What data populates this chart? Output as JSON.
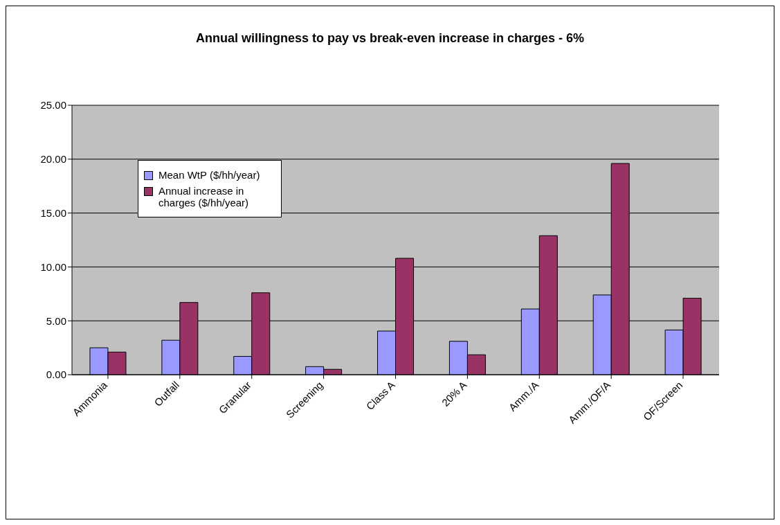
{
  "chart_data": {
    "type": "bar",
    "title": "Annual willingness to pay vs break-even increase in charges - 6%",
    "categories": [
      "Ammonia",
      "Outfall",
      "Granular",
      "Screening",
      "Class A",
      "20% A",
      "Amm./A",
      "Amm./OF/A",
      "OF/Screen"
    ],
    "series": [
      {
        "name": "Mean WtP ($/hh/year)",
        "color": "#9999ff",
        "values": [
          2.5,
          3.2,
          1.7,
          0.75,
          4.05,
          3.1,
          6.1,
          7.4,
          4.15
        ]
      },
      {
        "name": "Annual increase in charges ($/hh/year)",
        "color": "#993366",
        "values": [
          2.1,
          6.7,
          7.6,
          0.5,
          10.8,
          1.85,
          12.9,
          19.6,
          7.1
        ]
      }
    ],
    "ylim": [
      0,
      25
    ],
    "yticks": [
      {
        "value": 0,
        "label": "0.00"
      },
      {
        "value": 5,
        "label": "5.00"
      },
      {
        "value": 10,
        "label": "10.00"
      },
      {
        "value": 15,
        "label": "15.00"
      },
      {
        "value": 20,
        "label": "20.00"
      },
      {
        "value": 25,
        "label": "25.00"
      }
    ],
    "grid": "y",
    "legend": "top left"
  }
}
